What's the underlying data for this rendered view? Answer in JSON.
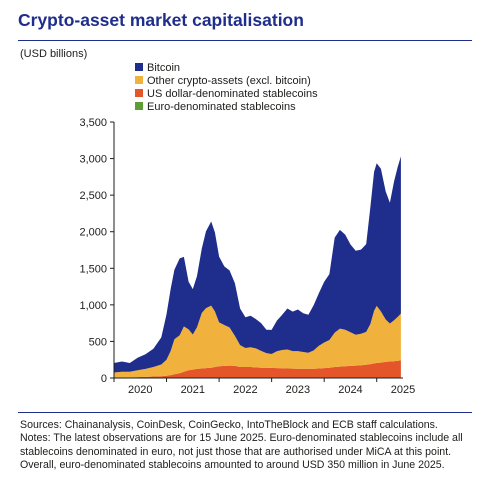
{
  "title": "Crypto-asset market capitalisation",
  "unit_label": "(USD billions)",
  "notes": {
    "sources": "Sources: Chainanalysis, CoinDesk, CoinGecko, IntoTheBlock and ECB staff calculations.",
    "notes_line1": "Notes: The latest observations are for 15 June 2025. Euro-denominated stablecoins include all",
    "notes_line2": "stablecoins denominated in euro, not just those that are authorised under MiCA at this point.",
    "notes_line3": "Overall, euro-denominated stablecoins amounted to around USD 350 million in June 2025."
  },
  "chart_data": {
    "type": "area",
    "stacked": true,
    "title": "Crypto-asset market capitalisation",
    "ylabel": "(USD billions)",
    "xlim": [
      2020.0,
      2025.5
    ],
    "ylim": [
      0,
      3500
    ],
    "yticks": [
      0,
      500,
      1000,
      1500,
      2000,
      2500,
      3000,
      3500
    ],
    "xticks": [
      "2020",
      "2021",
      "2022",
      "2023",
      "2024",
      "2025"
    ],
    "grid": false,
    "legend_position": "top-left",
    "x": [
      2020.0,
      2020.15,
      2020.3,
      2020.45,
      2020.6,
      2020.75,
      2020.9,
      2021.0,
      2021.08,
      2021.15,
      2021.25,
      2021.33,
      2021.42,
      2021.5,
      2021.58,
      2021.67,
      2021.75,
      2021.85,
      2021.92,
      2022.0,
      2022.1,
      2022.2,
      2022.3,
      2022.4,
      2022.5,
      2022.6,
      2022.7,
      2022.8,
      2022.9,
      2023.0,
      2023.1,
      2023.2,
      2023.3,
      2023.4,
      2023.5,
      2023.6,
      2023.7,
      2023.8,
      2023.9,
      2024.0,
      2024.1,
      2024.2,
      2024.3,
      2024.4,
      2024.5,
      2024.6,
      2024.7,
      2024.8,
      2024.88,
      2024.95,
      2025.0,
      2025.08,
      2025.17,
      2025.25,
      2025.33,
      2025.4,
      2025.46
    ],
    "series": [
      {
        "name": "Euro-denominated stablecoins",
        "color": "#5e9c35",
        "values": [
          0,
          0,
          0,
          0,
          0,
          0,
          0,
          0,
          0,
          0,
          0,
          0,
          0,
          0,
          0,
          0,
          0,
          0,
          0.1,
          0.1,
          0.1,
          0.1,
          0.1,
          0.1,
          0.1,
          0.1,
          0.1,
          0.1,
          0.1,
          0.1,
          0.1,
          0.1,
          0.1,
          0.1,
          0.1,
          0.1,
          0.1,
          0.1,
          0.1,
          0.1,
          0.1,
          0.2,
          0.2,
          0.2,
          0.2,
          0.2,
          0.2,
          0.2,
          0.2,
          0.2,
          0.2,
          0.2,
          0.3,
          0.3,
          0.3,
          0.3,
          0.35
        ]
      },
      {
        "name": "US dollar-denominated stablecoins",
        "color": "#e4552a",
        "values": [
          5,
          6,
          10,
          12,
          15,
          20,
          25,
          30,
          40,
          50,
          65,
          85,
          105,
          115,
          125,
          130,
          135,
          140,
          150,
          160,
          165,
          170,
          165,
          150,
          150,
          150,
          145,
          140,
          140,
          138,
          135,
          133,
          130,
          128,
          127,
          125,
          125,
          127,
          130,
          135,
          140,
          150,
          155,
          160,
          165,
          170,
          175,
          180,
          190,
          200,
          205,
          210,
          220,
          225,
          230,
          235,
          240
        ]
      },
      {
        "name": "Other crypto-assets (excl. bitcoin)",
        "color": "#f0b23d",
        "values": [
          70,
          80,
          75,
          95,
          110,
          130,
          160,
          220,
          330,
          480,
          520,
          620,
          560,
          480,
          570,
          760,
          820,
          850,
          760,
          600,
          560,
          520,
          410,
          300,
          260,
          270,
          260,
          230,
          200,
          190,
          230,
          250,
          260,
          240,
          240,
          230,
          220,
          250,
          310,
          350,
          380,
          470,
          520,
          500,
          460,
          420,
          430,
          450,
          550,
          720,
          780,
          700,
          580,
          520,
          560,
          600,
          640
        ]
      },
      {
        "name": "Bitcoin",
        "color": "#1f2d8c",
        "values": [
          130,
          140,
          120,
          170,
          200,
          250,
          370,
          620,
          850,
          950,
          1050,
          950,
          650,
          620,
          700,
          880,
          1050,
          1150,
          1080,
          900,
          800,
          780,
          720,
          500,
          420,
          430,
          400,
          380,
          320,
          330,
          420,
          480,
          560,
          540,
          570,
          530,
          520,
          620,
          720,
          830,
          900,
          1300,
          1350,
          1300,
          1200,
          1150,
          1150,
          1200,
          1600,
          1900,
          1950,
          1950,
          1750,
          1650,
          1900,
          2050,
          2150
        ]
      }
    ]
  }
}
